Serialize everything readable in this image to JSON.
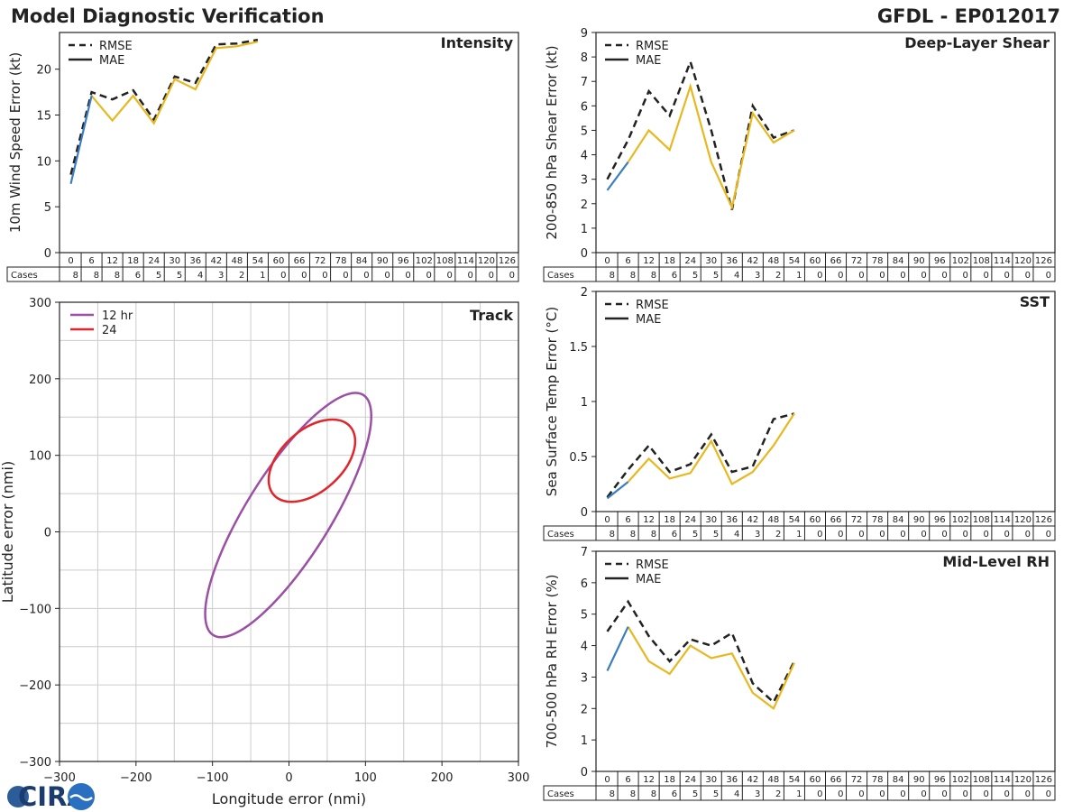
{
  "header": {
    "title": "Model Diagnostic Verification",
    "storm_id": "GFDL - EP012017"
  },
  "logo": {
    "text": "CIRA"
  },
  "colors": {
    "blue": "#3a7ebf",
    "gold": "#e8b820",
    "dash": "#222222",
    "purple": "#9b4fa5",
    "red": "#e0262a",
    "grid": "#cccccc"
  },
  "legend": {
    "rmse": "RMSE",
    "mae": "MAE"
  },
  "table": {
    "hours": [
      "0",
      "6",
      "12",
      "18",
      "24",
      "30",
      "36",
      "42",
      "48",
      "54",
      "60",
      "66",
      "72",
      "78",
      "84",
      "90",
      "96",
      "102",
      "108",
      "114",
      "120",
      "126"
    ],
    "cases_label": "Cases",
    "cases": [
      "8",
      "8",
      "8",
      "6",
      "5",
      "5",
      "4",
      "3",
      "2",
      "1",
      "0",
      "0",
      "0",
      "0",
      "0",
      "0",
      "0",
      "0",
      "0",
      "0",
      "0",
      "0"
    ]
  },
  "chart_data": [
    {
      "id": "intensity",
      "type": "line",
      "title": "Intensity",
      "ylabel": "10m Wind Speed Error (kt)",
      "ylim": [
        0,
        24
      ],
      "yticks": [
        0,
        5,
        10,
        15,
        20
      ],
      "x": [
        0,
        6,
        12,
        18,
        24,
        30,
        36,
        42,
        48,
        54
      ],
      "series": [
        {
          "name": "RMSE",
          "values": [
            8.5,
            17.5,
            16.7,
            17.7,
            14.5,
            19.2,
            18.5,
            22.7,
            22.8,
            23.2
          ]
        },
        {
          "name": "MAE",
          "values": [
            7.5,
            17.1,
            14.4,
            17.1,
            14.1,
            18.9,
            17.8,
            22.3,
            22.5,
            23.0
          ]
        }
      ]
    },
    {
      "id": "shear",
      "type": "line",
      "title": "Deep-Layer Shear",
      "ylabel": "200-850 hPa Shear Error (kt)",
      "ylim": [
        0,
        9
      ],
      "yticks": [
        0,
        1,
        2,
        3,
        4,
        5,
        6,
        7,
        8,
        9
      ],
      "x": [
        0,
        6,
        12,
        18,
        24,
        30,
        36,
        42,
        48,
        54
      ],
      "series": [
        {
          "name": "RMSE",
          "values": [
            3.0,
            4.6,
            6.6,
            5.6,
            7.8,
            5.0,
            1.75,
            6.0,
            4.7,
            5.0
          ]
        },
        {
          "name": "MAE",
          "values": [
            2.55,
            3.7,
            5.0,
            4.2,
            6.8,
            3.7,
            1.85,
            5.7,
            4.5,
            5.0
          ]
        }
      ]
    },
    {
      "id": "sst",
      "type": "line",
      "title": "SST",
      "ylabel": "Sea Surface Temp Error (°C)",
      "ylim": [
        0,
        2.0
      ],
      "yticks": [
        0.0,
        0.5,
        1.0,
        1.5,
        2.0
      ],
      "x": [
        0,
        6,
        12,
        18,
        24,
        30,
        36,
        42,
        48,
        54
      ],
      "series": [
        {
          "name": "RMSE",
          "values": [
            0.13,
            0.38,
            0.6,
            0.36,
            0.43,
            0.7,
            0.36,
            0.41,
            0.84,
            0.89
          ]
        },
        {
          "name": "MAE",
          "values": [
            0.12,
            0.27,
            0.48,
            0.3,
            0.35,
            0.64,
            0.25,
            0.36,
            0.6,
            0.89
          ]
        }
      ]
    },
    {
      "id": "rh",
      "type": "line",
      "title": "Mid-Level RH",
      "ylabel": "700-500 hPa RH Error (%)",
      "ylim": [
        0,
        7
      ],
      "yticks": [
        0,
        1,
        2,
        3,
        4,
        5,
        6,
        7
      ],
      "x": [
        0,
        6,
        12,
        18,
        24,
        30,
        36,
        42,
        48,
        54
      ],
      "series": [
        {
          "name": "RMSE",
          "values": [
            4.45,
            5.4,
            4.3,
            3.5,
            4.2,
            4.0,
            4.4,
            2.8,
            2.2,
            3.5
          ]
        },
        {
          "name": "MAE",
          "values": [
            3.2,
            4.6,
            3.5,
            3.1,
            4.0,
            3.6,
            3.75,
            2.5,
            2.0,
            3.45
          ]
        }
      ]
    },
    {
      "id": "track",
      "type": "ellipse",
      "title": "Track",
      "xlabel": "Longitude error (nmi)",
      "ylabel": "Latitude error (nmi)",
      "xlim": [
        -300,
        300
      ],
      "ylim": [
        -300,
        300
      ],
      "xticks": [
        -300,
        -200,
        -100,
        0,
        100,
        200,
        300
      ],
      "yticks": [
        -300,
        -200,
        -100,
        0,
        100,
        200,
        300
      ],
      "xtick_labels": [
        "−300",
        "−200",
        "−100",
        "0",
        "100",
        "200",
        "300"
      ],
      "ytick_labels": [
        "−300",
        "−200",
        "−100",
        "0",
        "100",
        "200",
        "300"
      ],
      "series": [
        {
          "name": "12 hr",
          "center": [
            -1,
            22
          ],
          "semi_major": 185,
          "semi_minor": 55,
          "angle_deg": 58
        },
        {
          "name": "24",
          "center": [
            30,
            93
          ],
          "semi_major": 67,
          "semi_minor": 40,
          "angle_deg": 42
        }
      ]
    }
  ]
}
